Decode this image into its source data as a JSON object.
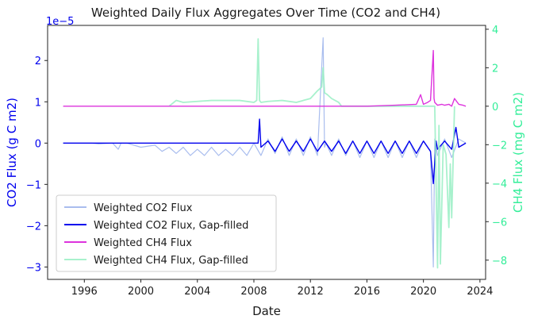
{
  "chart_data": {
    "type": "line",
    "title": "Weighted Daily Flux Aggregates Over Time (CO2 and CH4)",
    "xlabel": "Date",
    "ylabel_left": "CO2 Flux (g C m2)",
    "ylabel_right": "CH4 Flux (mg C m2)",
    "offset_text_left": "1e−5",
    "xlim": [
      1993.4,
      2024.4
    ],
    "ylim_left": [
      -3.3,
      2.85
    ],
    "ylim_right": [
      -9.0,
      4.2
    ],
    "x_ticks": [
      1996,
      2000,
      2004,
      2008,
      2012,
      2016,
      2020,
      2024
    ],
    "y_ticks_left": [
      -3,
      -2,
      -1,
      0,
      1,
      2
    ],
    "y_ticks_right": [
      -8,
      -6,
      -4,
      -2,
      0,
      2,
      4
    ],
    "legend_position": "lower-left",
    "colors": {
      "co2_raw": "#a9bdee",
      "co2_filled": "#0000ee",
      "ch4_raw": "#dd33dd",
      "ch4_filled": "#99eec4",
      "axis_left": "#0000ee",
      "axis_right": "#33ee99"
    },
    "series": [
      {
        "name": "Weighted CO2 Flux",
        "axis": "left",
        "x": [
          1994.5,
          1995.5,
          1996.5,
          1997.0,
          1998.0,
          1998.4,
          1998.6,
          1999.0,
          2000.0,
          2001.0,
          2001.5,
          2002.0,
          2002.5,
          2003.0,
          2003.5,
          2004.0,
          2004.5,
          2005.0,
          2005.5,
          2006.0,
          2006.5,
          2007.0,
          2007.5,
          2008.0,
          2008.5,
          2009.0,
          2009.5,
          2010.0,
          2010.5,
          2011.0,
          2011.5,
          2012.0,
          2012.5,
          2012.9,
          2013.0,
          2013.1,
          2013.5,
          2014.0,
          2014.5,
          2015.0,
          2015.5,
          2016.0,
          2016.5,
          2017.0,
          2017.5,
          2018.0,
          2018.5,
          2019.0,
          2019.5,
          2020.0,
          2020.5,
          2020.7,
          2020.8,
          2021.0,
          2021.5,
          2022.0,
          2022.5,
          2023.0
        ],
        "y": [
          0.0,
          0.0,
          0.0,
          -0.02,
          0.0,
          -0.15,
          0.0,
          0.0,
          -0.1,
          -0.05,
          -0.2,
          -0.1,
          -0.25,
          -0.1,
          -0.3,
          -0.15,
          -0.3,
          -0.1,
          -0.3,
          -0.15,
          -0.3,
          -0.1,
          -0.3,
          0.0,
          -0.3,
          0.1,
          -0.25,
          0.15,
          -0.3,
          0.1,
          -0.3,
          0.15,
          -0.3,
          2.55,
          -0.1,
          0.0,
          -0.3,
          0.1,
          -0.3,
          0.05,
          -0.35,
          0.05,
          -0.35,
          0.05,
          -0.35,
          0.05,
          -0.35,
          0.05,
          -0.35,
          0.05,
          -0.2,
          -3.0,
          0.1,
          -0.3,
          0.1,
          -0.35,
          0.1,
          0.0
        ]
      },
      {
        "name": "Weighted CO2 Flux, Gap-filled",
        "axis": "left",
        "x": [
          1994.5,
          1996.0,
          1998.0,
          2000.0,
          2002.0,
          2004.0,
          2006.0,
          2007.5,
          2008.0,
          2008.3,
          2008.4,
          2008.5,
          2009.0,
          2009.5,
          2010.0,
          2010.5,
          2011.0,
          2011.5,
          2012.0,
          2012.5,
          2013.0,
          2013.5,
          2014.0,
          2014.5,
          2015.0,
          2015.5,
          2016.0,
          2016.5,
          2017.0,
          2017.5,
          2018.0,
          2018.5,
          2019.0,
          2019.5,
          2020.0,
          2020.5,
          2020.7,
          2020.9,
          2021.0,
          2021.5,
          2022.0,
          2022.3,
          2022.5,
          2023.0
        ],
        "y": [
          0.0,
          0.0,
          0.0,
          0.0,
          0.0,
          0.0,
          0.0,
          0.0,
          0.0,
          0.0,
          0.58,
          -0.1,
          0.05,
          -0.2,
          0.1,
          -0.2,
          0.05,
          -0.2,
          0.1,
          -0.2,
          0.05,
          -0.2,
          0.05,
          -0.25,
          0.05,
          -0.25,
          0.05,
          -0.25,
          0.05,
          -0.25,
          0.05,
          -0.25,
          0.05,
          -0.25,
          0.05,
          -0.2,
          -0.98,
          0.05,
          -0.15,
          0.05,
          -0.15,
          0.38,
          -0.1,
          0.0
        ]
      },
      {
        "name": "Weighted CH4 Flux",
        "axis": "right",
        "x": [
          1994.5,
          2000.0,
          2005.0,
          2008.0,
          2012.0,
          2016.0,
          2018.0,
          2019.5,
          2019.8,
          2020.0,
          2020.3,
          2020.5,
          2020.7,
          2020.75,
          2020.8,
          2021.0,
          2021.3,
          2021.5,
          2021.8,
          2022.0,
          2022.2,
          2022.5,
          2022.8,
          2023.0
        ],
        "y": [
          0.0,
          0.0,
          0.0,
          0.0,
          0.0,
          0.0,
          0.05,
          0.1,
          0.6,
          0.1,
          0.2,
          0.3,
          2.9,
          0.4,
          0.2,
          0.05,
          0.1,
          0.05,
          0.1,
          0.0,
          0.4,
          0.1,
          0.05,
          0.0
        ]
      },
      {
        "name": "Weighted CH4 Flux, Gap-filled",
        "axis": "right",
        "x": [
          2002.0,
          2002.5,
          2003.0,
          2004.0,
          2005.0,
          2006.0,
          2007.0,
          2008.0,
          2008.2,
          2008.3,
          2008.4,
          2008.5,
          2009.0,
          2010.0,
          2011.0,
          2011.5,
          2012.0,
          2012.5,
          2012.8,
          2012.9,
          2013.0,
          2013.2,
          2013.5,
          2014.0,
          2014.2,
          2020.8,
          2021.0,
          2021.1,
          2021.2,
          2021.4,
          2021.6,
          2021.8,
          2021.9,
          2022.0,
          2022.2
        ],
        "y": [
          0.0,
          0.3,
          0.2,
          0.25,
          0.3,
          0.3,
          0.3,
          0.2,
          0.3,
          3.5,
          0.3,
          0.2,
          0.25,
          0.3,
          0.2,
          0.3,
          0.4,
          0.8,
          1.0,
          2.0,
          0.7,
          0.6,
          0.4,
          0.2,
          0.0,
          0.0,
          -8.4,
          -1.0,
          -8.2,
          -2.0,
          -2.5,
          -6.3,
          -3.0,
          -5.8,
          0.0
        ]
      }
    ]
  }
}
